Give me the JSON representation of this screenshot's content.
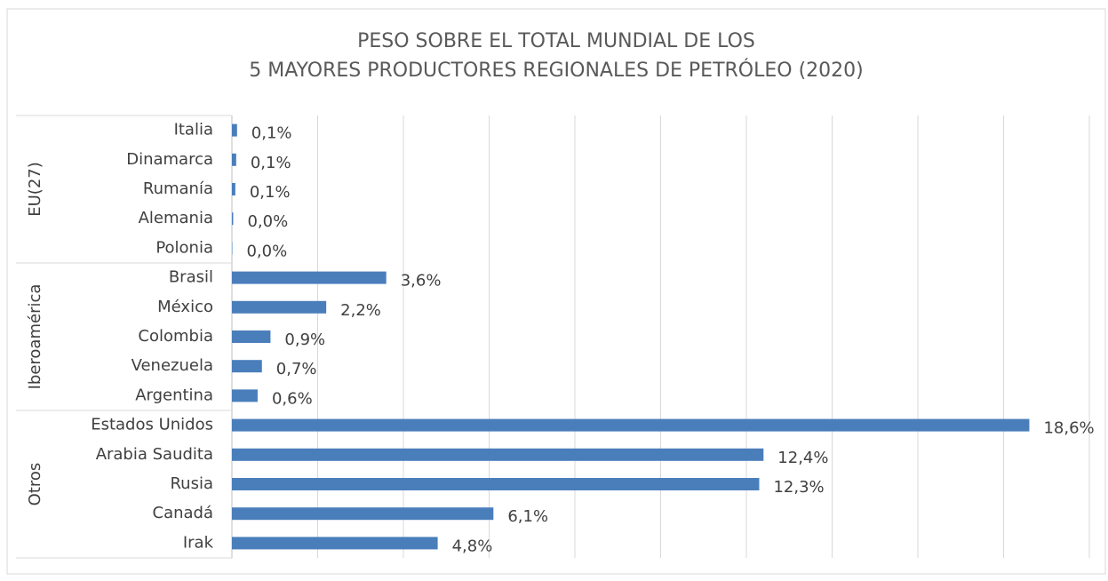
{
  "chart_data": {
    "type": "bar",
    "orientation": "horizontal",
    "title": [
      "PESO SOBRE EL TOTAL MUNDIAL DE LOS",
      "5 MAYORES PRODUCTORES REGIONALES DE PETRÓLEO (2020)"
    ],
    "color": "#4a7ebb",
    "grid": true,
    "xlim": [
      0,
      20
    ],
    "xticks": [
      0,
      2,
      4,
      6,
      8,
      10,
      12,
      14,
      16,
      18,
      20
    ],
    "groups": [
      {
        "name": "EU(27)",
        "categories": [
          "Italia",
          "Dinamarca",
          "Rumanía",
          "Alemania",
          "Polonia"
        ],
        "values": [
          0.12,
          0.1,
          0.08,
          0.03,
          0.01
        ],
        "value_labels": [
          "0,1%",
          "0,1%",
          "0,1%",
          "0,0%",
          "0,0%"
        ]
      },
      {
        "name": "Iberoamérica",
        "categories": [
          "Brasil",
          "México",
          "Colombia",
          "Venezuela",
          "Argentina"
        ],
        "values": [
          3.6,
          2.2,
          0.9,
          0.7,
          0.6
        ],
        "value_labels": [
          "3,6%",
          "2,2%",
          "0,9%",
          "0,7%",
          "0,6%"
        ]
      },
      {
        "name": "Otros",
        "categories": [
          "Estados Unidos",
          "Arabia Saudita",
          "Rusia",
          "Canadá",
          "Irak"
        ],
        "values": [
          18.6,
          12.4,
          12.3,
          6.1,
          4.8
        ],
        "value_labels": [
          "18,6%",
          "12,4%",
          "12,3%",
          "6,1%",
          "4,8%"
        ]
      }
    ]
  }
}
